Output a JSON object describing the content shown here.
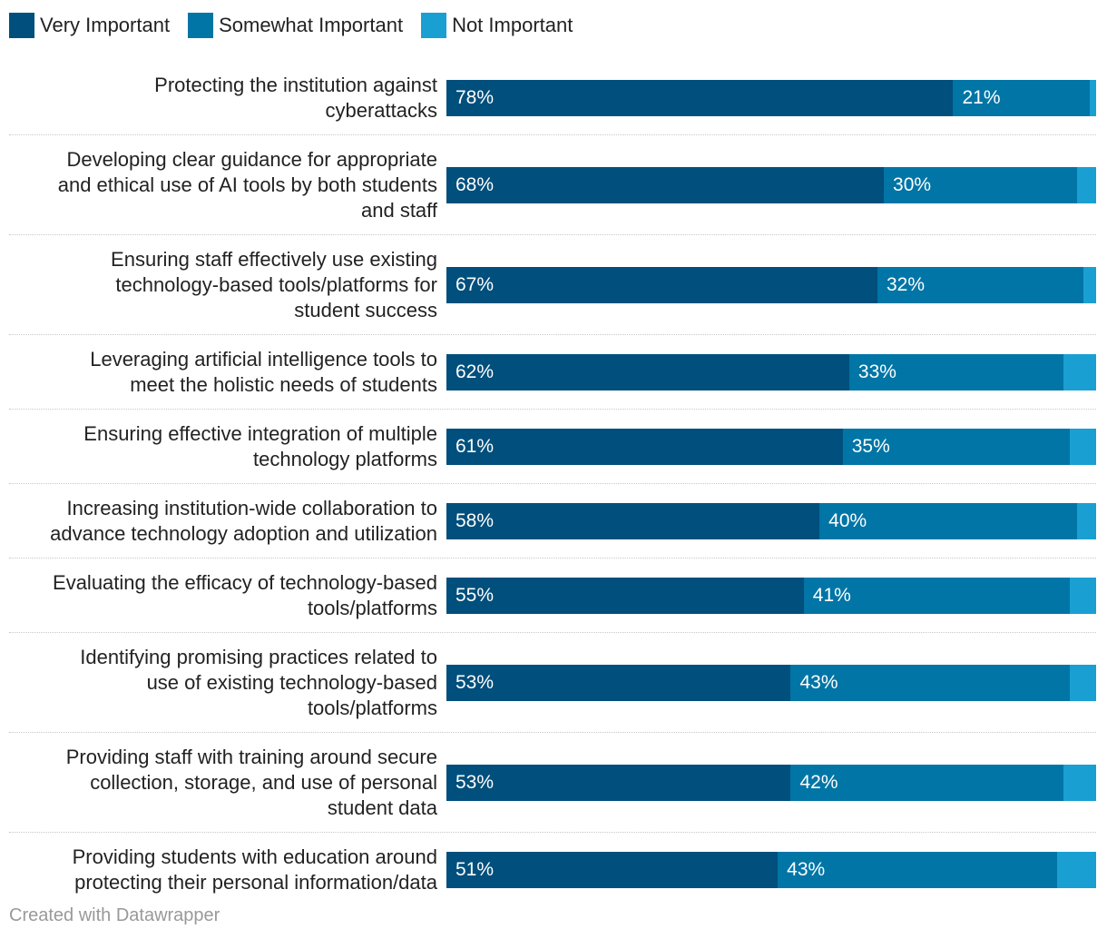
{
  "chart_data": {
    "type": "bar",
    "orientation": "horizontal-stacked",
    "title": "",
    "xlabel": "",
    "ylabel": "",
    "xlim": [
      0,
      100
    ],
    "legend_position": "top-left",
    "series": [
      {
        "name": "Very Important",
        "color": "#004f7c",
        "values": [
          78,
          68,
          67,
          62,
          61,
          58,
          55,
          53,
          53,
          51
        ]
      },
      {
        "name": "Somewhat Important",
        "color": "#0075a6",
        "values": [
          21,
          30,
          32,
          33,
          35,
          40,
          41,
          43,
          42,
          43
        ]
      },
      {
        "name": "Not Important",
        "color": "#1a9fd3",
        "values": [
          1,
          3,
          2,
          5,
          4,
          3,
          4,
          4,
          5,
          6
        ]
      }
    ],
    "categories": [
      "Protecting the institution against cyberattacks",
      "Developing clear guidance for appropriate and ethical use of AI tools by both students and staff",
      "Ensuring staff effectively use existing technology-based tools/platforms for student success",
      "Leveraging artificial intelligence tools to meet the holistic needs of students",
      "Ensuring effective integration of multiple technology platforms",
      "Increasing institution-wide collaboration to advance technology adoption and utilization",
      "Evaluating the efficacy of technology-based tools/platforms",
      "Identifying promising practices related to use of existing technology-based tools/platforms",
      "Providing staff with training around secure collection, storage, and use of personal student data",
      "Providing students with education around protecting their personal information/data"
    ],
    "category_lines": [
      [
        "Protecting the institution against",
        "cyberattacks"
      ],
      [
        "Developing clear guidance for appropriate",
        "and ethical use of AI tools by both students",
        "and staff"
      ],
      [
        "Ensuring staff effectively use existing",
        "technology-based tools/platforms for",
        "student success"
      ],
      [
        "Leveraging artificial intelligence tools to",
        "meet the holistic needs of students"
      ],
      [
        "Ensuring effective integration of multiple",
        "technology platforms"
      ],
      [
        "Increasing institution-wide collaboration to",
        "advance technology adoption and utilization"
      ],
      [
        "Evaluating the efficacy of technology-based",
        "tools/platforms"
      ],
      [
        "Identifying promising practices related to",
        "use of existing technology-based",
        "tools/platforms"
      ],
      [
        "Providing staff with training around secure",
        "collection, storage, and use of personal",
        "student data"
      ],
      [
        "Providing students with education around",
        "protecting their personal information/data"
      ]
    ],
    "data_labels": [
      [
        "78%",
        "21%"
      ],
      [
        "68%",
        "30%"
      ],
      [
        "67%",
        "32%"
      ],
      [
        "62%",
        "33%"
      ],
      [
        "61%",
        "35%"
      ],
      [
        "58%",
        "40%"
      ],
      [
        "55%",
        "41%"
      ],
      [
        "53%",
        "43%"
      ],
      [
        "53%",
        "42%"
      ],
      [
        "51%",
        "43%"
      ]
    ]
  },
  "footer": {
    "credit": "Created with Datawrapper"
  }
}
